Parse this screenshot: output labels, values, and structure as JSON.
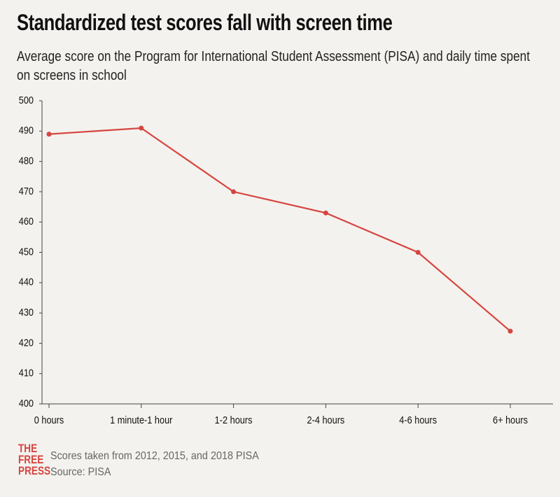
{
  "chart_data": {
    "type": "line",
    "title": "Standardized test scores fall with screen time",
    "subtitle": "Average score on the Program for International Student Assessment (PISA) and daily time spent on screens in school",
    "categories": [
      "0 hours",
      "1 minute-1 hour",
      "1-2 hours",
      "2-4 hours",
      "4-6 hours",
      "6+ hours"
    ],
    "series": [
      {
        "color": "#d64541",
        "values": [
          489,
          491,
          470,
          463,
          450,
          424
        ]
      }
    ],
    "ylim": [
      400,
      500
    ],
    "yticks": [
      400,
      410,
      420,
      430,
      440,
      450,
      460,
      470,
      480,
      490,
      500
    ],
    "note": "Scores taken from 2012, 2015, and 2018 PISA",
    "source": "Source: PISA"
  },
  "logo": [
    "THE",
    "FREE",
    "PRESS"
  ]
}
